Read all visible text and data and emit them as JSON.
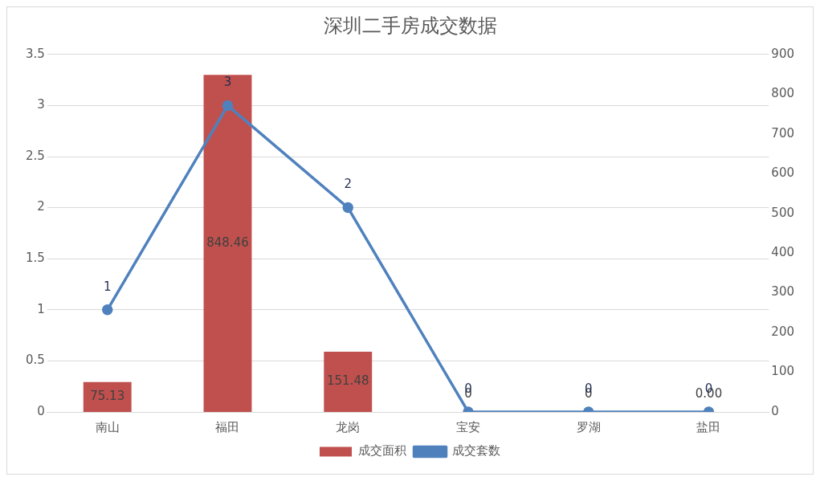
{
  "chart_data": {
    "type": "bar",
    "title": "深圳二手房成交数据",
    "categories": [
      "南山",
      "福田",
      "龙岗",
      "宝安",
      "罗湖",
      "盐田"
    ],
    "series": [
      {
        "name": "成交面积",
        "axis": "y2",
        "color": "#c0504d",
        "values": [
          75.13,
          848.46,
          151.48,
          0,
          0,
          0
        ],
        "value_labels": [
          "75.13",
          "848.46",
          "151.48",
          "0",
          "0",
          "0.00"
        ]
      },
      {
        "name": "成交套数",
        "type": "line",
        "axis": "y",
        "color": "#4f81bd",
        "values": [
          1,
          3,
          2,
          0,
          0,
          0
        ],
        "value_labels": [
          "1",
          "3",
          "2",
          "0",
          "0",
          "0"
        ]
      }
    ],
    "ylim": [
      0,
      3.5
    ],
    "yticks": [
      0,
      0.5,
      1,
      1.5,
      2,
      2.5,
      3,
      3.5
    ],
    "y2lim": [
      0,
      900
    ],
    "y2ticks": [
      0,
      100,
      200,
      300,
      400,
      500,
      600,
      700,
      800,
      900
    ],
    "grid": "y",
    "legend": "bottom",
    "marker": "circle"
  }
}
